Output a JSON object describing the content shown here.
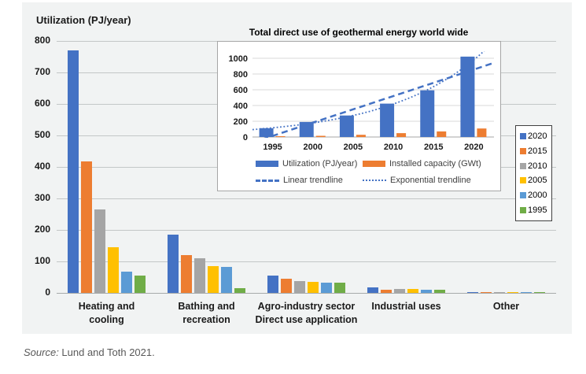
{
  "source": {
    "prefix": "Source:",
    "text": " Lund and Toth 2021."
  },
  "chart_data": [
    {
      "type": "bar",
      "name": "utilization-by-application",
      "axis_title": "Utilization (PJ/year)",
      "ylim": [
        0,
        800
      ],
      "yticks": [
        800,
        700,
        600,
        500,
        400,
        300,
        200,
        100,
        0
      ],
      "grid": true,
      "legend_position": "right",
      "categories": [
        "Heating and\ncooling",
        "Bathing and\nrecreation",
        "Agro-industry sector\nDirect use application",
        "Industrial uses",
        "Other"
      ],
      "series": [
        {
          "name": "2020",
          "color": "#4472C4",
          "values": [
            770,
            184,
            55,
            17,
            2
          ]
        },
        {
          "name": "2015",
          "color": "#ED7D31",
          "values": [
            418,
            120,
            45,
            11,
            2
          ]
        },
        {
          "name": "2010",
          "color": "#A5A5A5",
          "values": [
            264,
            110,
            38,
            13,
            1
          ]
        },
        {
          "name": "2005",
          "color": "#FFC000",
          "values": [
            145,
            85,
            35,
            12,
            2
          ]
        },
        {
          "name": "2000",
          "color": "#5B9BD5",
          "values": [
            68,
            82,
            33,
            11,
            3
          ]
        },
        {
          "name": "1995",
          "color": "#70AD47",
          "values": [
            55,
            15,
            32,
            10,
            1
          ]
        }
      ]
    },
    {
      "type": "bar",
      "name": "total-direct-use-inset",
      "title": "Total direct use of geothermal energy world wide",
      "ylim": [
        0,
        1000
      ],
      "yticks": [
        1000,
        800,
        600,
        400,
        200,
        0
      ],
      "grid": true,
      "legend_position": "bottom",
      "categories": [
        "1995",
        "2000",
        "2005",
        "2010",
        "2015",
        "2020"
      ],
      "series": [
        {
          "name": "Utilization (PJ/year)",
          "color": "#4472C4",
          "values": [
            112,
            191,
            273,
            424,
            593,
            1021
          ]
        },
        {
          "name": "Installed capacity (GWt)",
          "color": "#ED7D31",
          "values": [
            9,
            15,
            28,
            49,
            71,
            108
          ]
        }
      ],
      "trendlines": [
        {
          "name": "Linear trendline",
          "style": "dashed",
          "color": "#4472C4"
        },
        {
          "name": "Exponential trendline",
          "style": "dotted",
          "color": "#4472C4"
        }
      ]
    }
  ]
}
